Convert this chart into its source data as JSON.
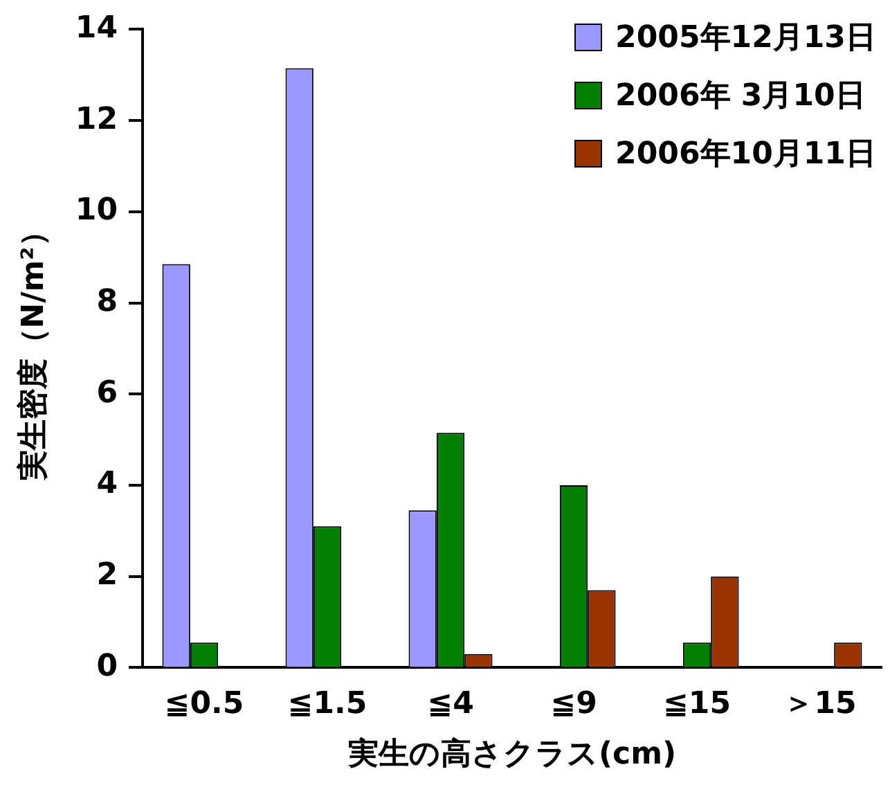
{
  "chart_data": {
    "type": "bar",
    "xlabel": "実生の高さクラス(cm)",
    "ylabel": "実生密度（N/m²）",
    "categories": [
      "≦0.5",
      "≦1.5",
      "≦4",
      "≦9",
      "≦15",
      "＞15"
    ],
    "series": [
      {
        "name": "2005年12月13日",
        "color": "#9999ff",
        "values": [
          8.85,
          13.15,
          3.45,
          null,
          null,
          null
        ]
      },
      {
        "name": "2006年 3月10日",
        "color": "#008000",
        "values": [
          0.55,
          3.1,
          5.15,
          4.0,
          0.55,
          null
        ]
      },
      {
        "name": "2006年10月11日",
        "color": "#993300",
        "values": [
          null,
          null,
          0.3,
          1.7,
          2.0,
          0.55
        ]
      }
    ],
    "ylim": [
      0,
      14
    ],
    "yticks": [
      0,
      2,
      4,
      6,
      8,
      10,
      12,
      14
    ],
    "grid": false,
    "legend": "top right"
  }
}
